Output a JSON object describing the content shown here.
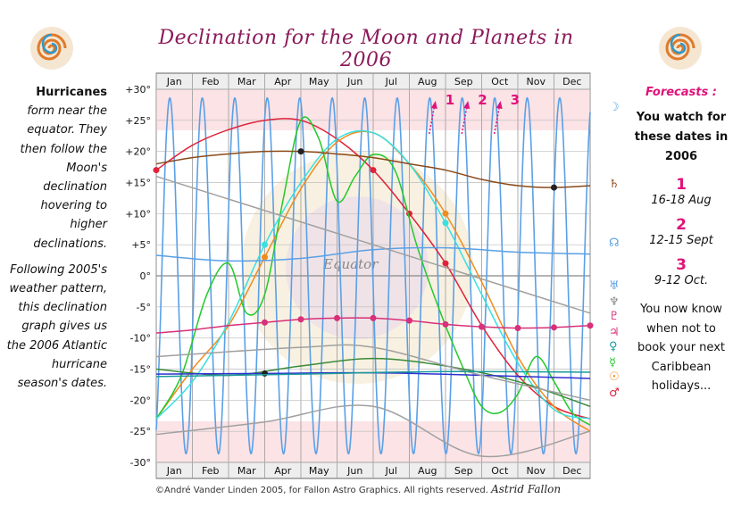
{
  "title": "Declination for the Moon and Planets in 2006",
  "left_text": {
    "lead": "Hurricanes",
    "body": "form near the equator. They then follow the Moon's declination hovering to higher declinations.",
    "body2": "Following 2005's weather pattern, this declination graph gives us the 2006 Atlantic hurricane season's dates."
  },
  "right_text": {
    "forecasts_label": "Forecasts :",
    "watch": "You watch for these dates in 2006",
    "items": [
      {
        "num": "1",
        "dates": "16-18 Aug"
      },
      {
        "num": "2",
        "dates": "12-15 Sept"
      },
      {
        "num": "3",
        "dates": "9-12 Oct."
      }
    ],
    "closing": "You now know when not to book your next Caribbean holidays..."
  },
  "copyright": "©André Vander Linden 2005, for Fallon Astro Graphics. All rights reserved.",
  "signature": "Astrid Fallon",
  "chart_data": {
    "type": "line",
    "title": "Declination for the Moon and Planets in 2006",
    "months": [
      "Jan",
      "Feb",
      "Mar",
      "Apr",
      "May",
      "Jun",
      "Jul",
      "Aug",
      "Sep",
      "Oct",
      "Nov",
      "Dec"
    ],
    "x_unit": "month",
    "ylim": [
      -30,
      30
    ],
    "y_ticks": [
      30,
      25,
      20,
      15,
      10,
      5,
      0,
      -5,
      -10,
      -15,
      -20,
      -25,
      -30
    ],
    "y_tick_labels": [
      "+30°",
      "+25°",
      "+20°",
      "+15°",
      "+10°",
      "+5°",
      "0°",
      "-5°",
      "-10°",
      "-15°",
      "-20°",
      "-25°",
      "-30°"
    ],
    "grid": true,
    "annotation": "Equator",
    "forecast_markers": [
      {
        "label": "1",
        "month": 7.55
      },
      {
        "label": "2",
        "month": 8.45
      },
      {
        "label": "3",
        "month": 9.35
      }
    ],
    "series": [
      {
        "key": "moon",
        "color": "#5aa0e6",
        "glyph": "☽",
        "kind": "moon"
      },
      {
        "key": "mars",
        "color": "#e0223a",
        "glyph": "",
        "kind": "points",
        "x": [
          0,
          1,
          2,
          3,
          4,
          5,
          6,
          7,
          8,
          9,
          10,
          11,
          12
        ],
        "y": [
          17,
          21,
          23.5,
          25,
          25,
          22,
          17,
          10,
          2,
          -8,
          -16,
          -21,
          -23
        ],
        "markers": [
          0,
          6,
          7,
          8
        ]
      },
      {
        "key": "venus",
        "color": "#f08c1e",
        "glyph": "",
        "kind": "points",
        "x": [
          0,
          1,
          2,
          3,
          4,
          5,
          6,
          7,
          8,
          9,
          10,
          11,
          12
        ],
        "y": [
          -23,
          -15,
          -8,
          3,
          14,
          21.5,
          23,
          18,
          10,
          -1,
          -13,
          -21,
          -25
        ],
        "markers": [
          3,
          8
        ]
      },
      {
        "key": "mercury",
        "color": "#22c92a",
        "glyph": "",
        "kind": "points",
        "x": [
          0,
          0.7,
          1.4,
          2,
          2.5,
          3,
          3.5,
          4,
          4.5,
          5,
          5.5,
          6,
          6.6,
          7.2,
          7.8,
          8.5,
          9,
          9.5,
          10,
          10.5,
          11,
          11.5,
          12
        ],
        "y": [
          -23,
          -16,
          -3,
          2,
          -6,
          -3,
          12,
          25,
          22,
          12,
          16,
          19.5,
          17,
          5,
          -5,
          -15,
          -21,
          -22,
          -19,
          -13,
          -17,
          -22,
          -24
        ],
        "markers": []
      },
      {
        "key": "sun",
        "color": "#38e0e0",
        "glyph": "",
        "kind": "points",
        "x": [
          0,
          1,
          2,
          3,
          4,
          5,
          6,
          7,
          8,
          9,
          10,
          11,
          12
        ],
        "y": [
          -23,
          -17,
          -7.5,
          5,
          15,
          22,
          23,
          18,
          8.5,
          -3,
          -14,
          -21.5,
          -23
        ],
        "markers": [
          3,
          8
        ]
      },
      {
        "key": "jupiter",
        "color": "#d8307a",
        "glyph": "♃",
        "kind": "points",
        "x": [
          0,
          1,
          2,
          3,
          4,
          5,
          6,
          7,
          8,
          9,
          10,
          11,
          12
        ],
        "y": [
          -9.2,
          -8.7,
          -8,
          -7.5,
          -7,
          -6.8,
          -6.8,
          -7.2,
          -7.8,
          -8.2,
          -8.4,
          -8.3,
          -8
        ],
        "markers": [
          3,
          4,
          5,
          6,
          7,
          8,
          9,
          10,
          11,
          12
        ]
      },
      {
        "key": "saturn",
        "color": "#8a4a1a",
        "glyph": "♄",
        "kind": "points",
        "x": [
          0,
          1,
          2,
          3,
          4,
          5,
          6,
          7,
          8,
          9,
          10,
          11,
          12
        ],
        "y": [
          18,
          19,
          19.6,
          20,
          20,
          19.6,
          19,
          18,
          17,
          15.5,
          14.5,
          14.2,
          14.5
        ],
        "markers": [
          4,
          11
        ]
      },
      {
        "key": "uranus",
        "color": "#5aa0e6",
        "glyph": "♅",
        "kind": "points",
        "x": [
          0,
          2,
          4,
          6,
          8,
          10,
          12
        ],
        "y": [
          3.3,
          2.4,
          2.8,
          4.2,
          4.5,
          3.8,
          3.5
        ],
        "markers": []
      },
      {
        "key": "neptune",
        "color": "#3a8a3a",
        "glyph": "♆",
        "kind": "points",
        "x": [
          0,
          2,
          4,
          6,
          8,
          10,
          12
        ],
        "y": [
          -15,
          -16,
          -14.5,
          -13.3,
          -14.5,
          -17,
          -21
        ],
        "markers": [
          10
        ]
      },
      {
        "key": "pluto",
        "color": "#3030d0",
        "glyph": "♇",
        "kind": "points",
        "x": [
          0,
          3,
          6,
          9,
          12
        ],
        "y": [
          -15.8,
          -15.7,
          -15.6,
          -16,
          -16.5
        ],
        "markers": [
          1
        ]
      },
      {
        "key": "node",
        "color": "#a0a0a0",
        "glyph": "☊",
        "kind": "points",
        "x": [
          0,
          12
        ],
        "y": [
          16,
          -6
        ],
        "markers": []
      },
      {
        "key": "lilith",
        "color": "#a0a0a0",
        "glyph": "",
        "kind": "points",
        "x": [
          0,
          3,
          6,
          9,
          12
        ],
        "y": [
          -25.5,
          -23.5,
          -21,
          -29,
          -25
        ],
        "markers": []
      },
      {
        "key": "other",
        "color": "#a0a0a0",
        "glyph": "",
        "kind": "points",
        "x": [
          0,
          4,
          6,
          9,
          12
        ],
        "y": [
          -13,
          -11.5,
          -11.5,
          -16,
          -20
        ],
        "markers": []
      },
      {
        "key": "teal",
        "color": "#1a9a9a",
        "glyph": "",
        "kind": "points",
        "x": [
          0,
          4,
          8,
          12
        ],
        "y": [
          -16.2,
          -15.8,
          -15.4,
          -15.5
        ],
        "markers": []
      }
    ],
    "right_glyphs": [
      "☽",
      "♄",
      "☊",
      "♅",
      "♆",
      "♇",
      "♃",
      "♀",
      "☿",
      "☉",
      "♂"
    ]
  }
}
